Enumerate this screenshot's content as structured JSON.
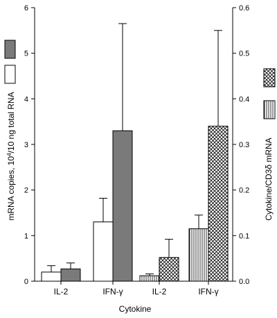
{
  "chart_data": {
    "type": "bar",
    "xlabel": "Cytokine",
    "ylabel": "mRNA copies, 10^4/10 ng total RNA",
    "ylabel_parts": [
      "mRNA copies, 10",
      "4",
      "/10 ng total RNA"
    ],
    "y2label": "Cytokine/CD3δ mRNA",
    "ylim": [
      0,
      6
    ],
    "y2lim": [
      0,
      0.6
    ],
    "yticks": [
      "0",
      "1",
      "2",
      "3",
      "4",
      "5",
      "6"
    ],
    "y2ticks": [
      "0.0",
      "0.1",
      "0.2",
      "0.3",
      "0.4",
      "0.5",
      "0.6"
    ],
    "categories": [
      "IL-2",
      "IFN-γ",
      "IL-2",
      "IFN-γ"
    ],
    "groups": [
      {
        "category": "IL-2",
        "axis": "left",
        "bars": [
          {
            "pattern": "white",
            "value": 0.2,
            "error": 0.14
          },
          {
            "pattern": "gray",
            "value": 0.27,
            "error": 0.13
          }
        ]
      },
      {
        "category": "IFN-γ",
        "axis": "left",
        "bars": [
          {
            "pattern": "white",
            "value": 1.3,
            "error": 0.52
          },
          {
            "pattern": "gray",
            "value": 3.3,
            "error": 2.35
          }
        ]
      },
      {
        "category": "IL-2",
        "axis": "right",
        "bars": [
          {
            "pattern": "vertical-lines",
            "value": 0.012,
            "error": 0.004
          },
          {
            "pattern": "crosshatch",
            "value": 0.052,
            "error": 0.04
          }
        ]
      },
      {
        "category": "IFN-γ",
        "axis": "right",
        "bars": [
          {
            "pattern": "vertical-lines",
            "value": 0.115,
            "error": 0.03
          },
          {
            "pattern": "crosshatch",
            "value": 0.34,
            "error": 0.21
          }
        ]
      }
    ],
    "legend": {
      "left": [
        "gray",
        "white"
      ],
      "right": [
        "crosshatch",
        "vertical-lines"
      ]
    },
    "grid": false
  }
}
